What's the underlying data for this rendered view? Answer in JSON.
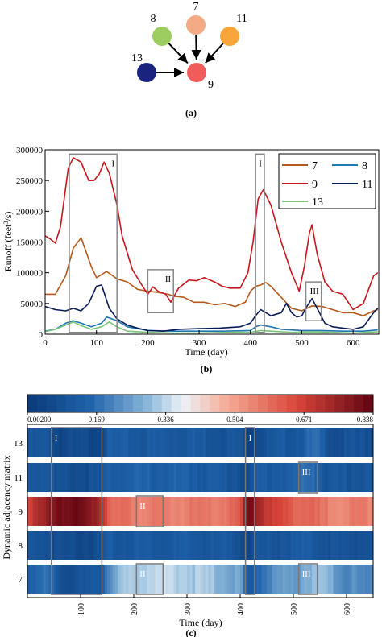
{
  "panel_a": {
    "label": "(a)",
    "nodes": [
      {
        "id": "7",
        "color": "#f4aa84"
      },
      {
        "id": "8",
        "color": "#9dcc61"
      },
      {
        "id": "11",
        "color": "#f8a53a"
      },
      {
        "id": "13",
        "color": "#1a237e"
      },
      {
        "id": "9",
        "color": "#f25b5b"
      }
    ],
    "edges": [
      [
        "7",
        "9"
      ],
      [
        "8",
        "9"
      ],
      [
        "11",
        "9"
      ],
      [
        "13",
        "9"
      ]
    ]
  },
  "chart_data": [
    {
      "type": "line",
      "panel_label": "(b)",
      "xlabel": "Time (day)",
      "ylabel": "Runoff (feet³/s)",
      "ylabel_main": "Runoff (feet",
      "ylabel_sup": "3",
      "ylabel_tail": "/s)",
      "xlim": [
        0,
        650
      ],
      "ylim": [
        0,
        300000
      ],
      "xticks": [
        0,
        100,
        200,
        300,
        400,
        500,
        600
      ],
      "yticks": [
        0,
        50000,
        100000,
        150000,
        200000,
        250000,
        300000
      ],
      "legend": {
        "placement": "top-right",
        "order": [
          "7",
          "8",
          "9",
          "11",
          "13"
        ]
      },
      "annotations": [
        {
          "label": "I",
          "x": [
            47,
            140
          ],
          "y": [
            3000,
            293000
          ]
        },
        {
          "label": "II",
          "x": [
            200,
            250
          ],
          "y": [
            35000,
            105000
          ]
        },
        {
          "label": "I",
          "x": [
            410,
            427
          ],
          "y": [
            3000,
            293000
          ]
        },
        {
          "label": "III",
          "x": [
            508,
            538
          ],
          "y": [
            22000,
            85000
          ]
        }
      ],
      "series": [
        {
          "name": "7",
          "color": "#b5591d",
          "x": [
            0,
            20,
            40,
            55,
            70,
            90,
            100,
            120,
            140,
            160,
            180,
            200,
            220,
            240,
            250,
            270,
            290,
            310,
            330,
            350,
            370,
            390,
            400,
            410,
            420,
            430,
            440,
            460,
            480,
            500,
            520,
            540,
            560,
            580,
            600,
            620,
            640,
            648
          ],
          "y": [
            65000,
            65000,
            95000,
            140000,
            157000,
            110000,
            92000,
            102000,
            90000,
            85000,
            73000,
            70000,
            68000,
            65000,
            62000,
            60000,
            52000,
            52000,
            48000,
            50000,
            45000,
            52000,
            70000,
            78000,
            80000,
            84000,
            78000,
            60000,
            42000,
            38000,
            46000,
            45000,
            40000,
            35000,
            35000,
            30000,
            38000,
            40000
          ]
        },
        {
          "name": "8",
          "color": "#1f77b4",
          "x": [
            0,
            20,
            40,
            55,
            70,
            90,
            110,
            120,
            140,
            160,
            200,
            250,
            300,
            350,
            400,
            410,
            420,
            440,
            460,
            500,
            540,
            580,
            620,
            648
          ],
          "y": [
            5000,
            8000,
            18000,
            22000,
            18000,
            12000,
            18000,
            28000,
            22000,
            12000,
            6000,
            5000,
            5000,
            5000,
            6000,
            12000,
            15000,
            12000,
            8000,
            6000,
            6000,
            5000,
            5000,
            7000
          ]
        },
        {
          "name": "9",
          "color": "#c8161d",
          "x": [
            0,
            10,
            20,
            30,
            45,
            55,
            70,
            85,
            95,
            105,
            115,
            125,
            140,
            150,
            170,
            190,
            200,
            210,
            220,
            235,
            245,
            260,
            280,
            295,
            310,
            330,
            345,
            360,
            380,
            395,
            405,
            415,
            425,
            440,
            460,
            480,
            495,
            505,
            515,
            520,
            530,
            545,
            560,
            580,
            600,
            620,
            640,
            648
          ],
          "y": [
            160000,
            155000,
            148000,
            175000,
            270000,
            287000,
            280000,
            250000,
            250000,
            260000,
            280000,
            262000,
            210000,
            160000,
            105000,
            78000,
            65000,
            77000,
            70000,
            65000,
            52000,
            75000,
            88000,
            87000,
            92000,
            85000,
            78000,
            75000,
            75000,
            100000,
            150000,
            220000,
            235000,
            210000,
            150000,
            100000,
            70000,
            110000,
            165000,
            178000,
            130000,
            85000,
            70000,
            65000,
            40000,
            50000,
            95000,
            100000
          ]
        },
        {
          "name": "11",
          "color": "#081d58",
          "x": [
            0,
            20,
            40,
            55,
            70,
            85,
            100,
            110,
            125,
            140,
            160,
            180,
            200,
            230,
            260,
            300,
            340,
            380,
            400,
            410,
            420,
            440,
            460,
            470,
            480,
            490,
            500,
            510,
            520,
            530,
            545,
            560,
            580,
            600,
            620,
            640,
            648
          ],
          "y": [
            45000,
            40000,
            38000,
            42000,
            38000,
            50000,
            78000,
            80000,
            42000,
            25000,
            15000,
            10000,
            6000,
            5000,
            8000,
            9000,
            10000,
            12000,
            18000,
            30000,
            40000,
            30000,
            35000,
            50000,
            35000,
            28000,
            30000,
            45000,
            58000,
            42000,
            18000,
            12000,
            10000,
            8000,
            12000,
            35000,
            42000
          ]
        },
        {
          "name": "13",
          "color": "#7cc576",
          "x": [
            0,
            20,
            40,
            55,
            70,
            90,
            110,
            125,
            140,
            160,
            200,
            250,
            300,
            350,
            400,
            420,
            440,
            480,
            520,
            560,
            600,
            648
          ],
          "y": [
            4000,
            8000,
            15000,
            20000,
            14000,
            8000,
            12000,
            20000,
            12000,
            5000,
            3000,
            2000,
            2000,
            3000,
            3000,
            6000,
            5000,
            3000,
            4000,
            3000,
            2000,
            4000
          ]
        }
      ]
    },
    {
      "type": "heatmap",
      "panel_label": "(c)",
      "xlabel": "Time (day)",
      "ylabel": "Dynamic adjacency matrix",
      "rows": [
        "13",
        "11",
        "9",
        "8",
        "7"
      ],
      "xlim": [
        0,
        650
      ],
      "xticks": [
        100,
        200,
        300,
        400,
        500,
        600
      ],
      "colorbar": {
        "min": 0.002,
        "max": 0.838,
        "ticks": [
          "0.00200",
          "0.169",
          "0.336",
          "0.504",
          "0.671",
          "0.838"
        ]
      },
      "row_profiles": {
        "13": {
          "x": [
            0,
            45,
            50,
            140,
            150,
            300,
            400,
            410,
            420,
            430,
            500,
            540,
            580,
            648
          ],
          "v": [
            0.1,
            0.1,
            0.06,
            0.06,
            0.12,
            0.12,
            0.1,
            0.04,
            0.05,
            0.08,
            0.12,
            0.16,
            0.08,
            0.09
          ]
        },
        "11": {
          "x": [
            0,
            45,
            50,
            140,
            150,
            300,
            400,
            410,
            420,
            430,
            500,
            540,
            560,
            648
          ],
          "v": [
            0.12,
            0.12,
            0.08,
            0.08,
            0.14,
            0.14,
            0.1,
            0.06,
            0.07,
            0.12,
            0.14,
            0.18,
            0.1,
            0.11
          ]
        },
        "9": {
          "x": [
            0,
            30,
            45,
            60,
            100,
            130,
            140,
            160,
            250,
            300,
            350,
            400,
            410,
            420,
            430,
            460,
            500,
            560,
            600,
            648
          ],
          "v": [
            0.68,
            0.72,
            0.78,
            0.82,
            0.8,
            0.76,
            0.72,
            0.58,
            0.55,
            0.56,
            0.56,
            0.6,
            0.78,
            0.82,
            0.76,
            0.66,
            0.62,
            0.56,
            0.55,
            0.56
          ]
        },
        "8": {
          "x": [
            0,
            45,
            50,
            140,
            150,
            300,
            400,
            410,
            420,
            430,
            500,
            540,
            580,
            648
          ],
          "v": [
            0.1,
            0.1,
            0.07,
            0.07,
            0.12,
            0.12,
            0.1,
            0.05,
            0.05,
            0.09,
            0.12,
            0.12,
            0.09,
            0.1
          ]
        },
        "7": {
          "x": [
            0,
            45,
            60,
            100,
            140,
            150,
            180,
            220,
            280,
            350,
            400,
            410,
            420,
            430,
            470,
            500,
            530,
            560,
            600,
            648
          ],
          "v": [
            0.16,
            0.16,
            0.1,
            0.08,
            0.12,
            0.22,
            0.3,
            0.34,
            0.34,
            0.3,
            0.26,
            0.14,
            0.1,
            0.16,
            0.24,
            0.24,
            0.3,
            0.28,
            0.22,
            0.2
          ]
        }
      },
      "annotations": [
        {
          "label": "I",
          "x": [
            45,
            140
          ],
          "rows": [
            "13",
            "7"
          ]
        },
        {
          "label": "I",
          "x": [
            410,
            427
          ],
          "rows": [
            "13",
            "7"
          ]
        },
        {
          "label": "II",
          "x": [
            205,
            255
          ],
          "rows": [
            "9"
          ]
        },
        {
          "label": "II",
          "x": [
            205,
            255
          ],
          "rows": [
            "7"
          ]
        },
        {
          "label": "III",
          "x": [
            510,
            545
          ],
          "rows": [
            "11"
          ]
        },
        {
          "label": "III",
          "x": [
            510,
            545
          ],
          "rows": [
            "7"
          ]
        }
      ]
    }
  ]
}
